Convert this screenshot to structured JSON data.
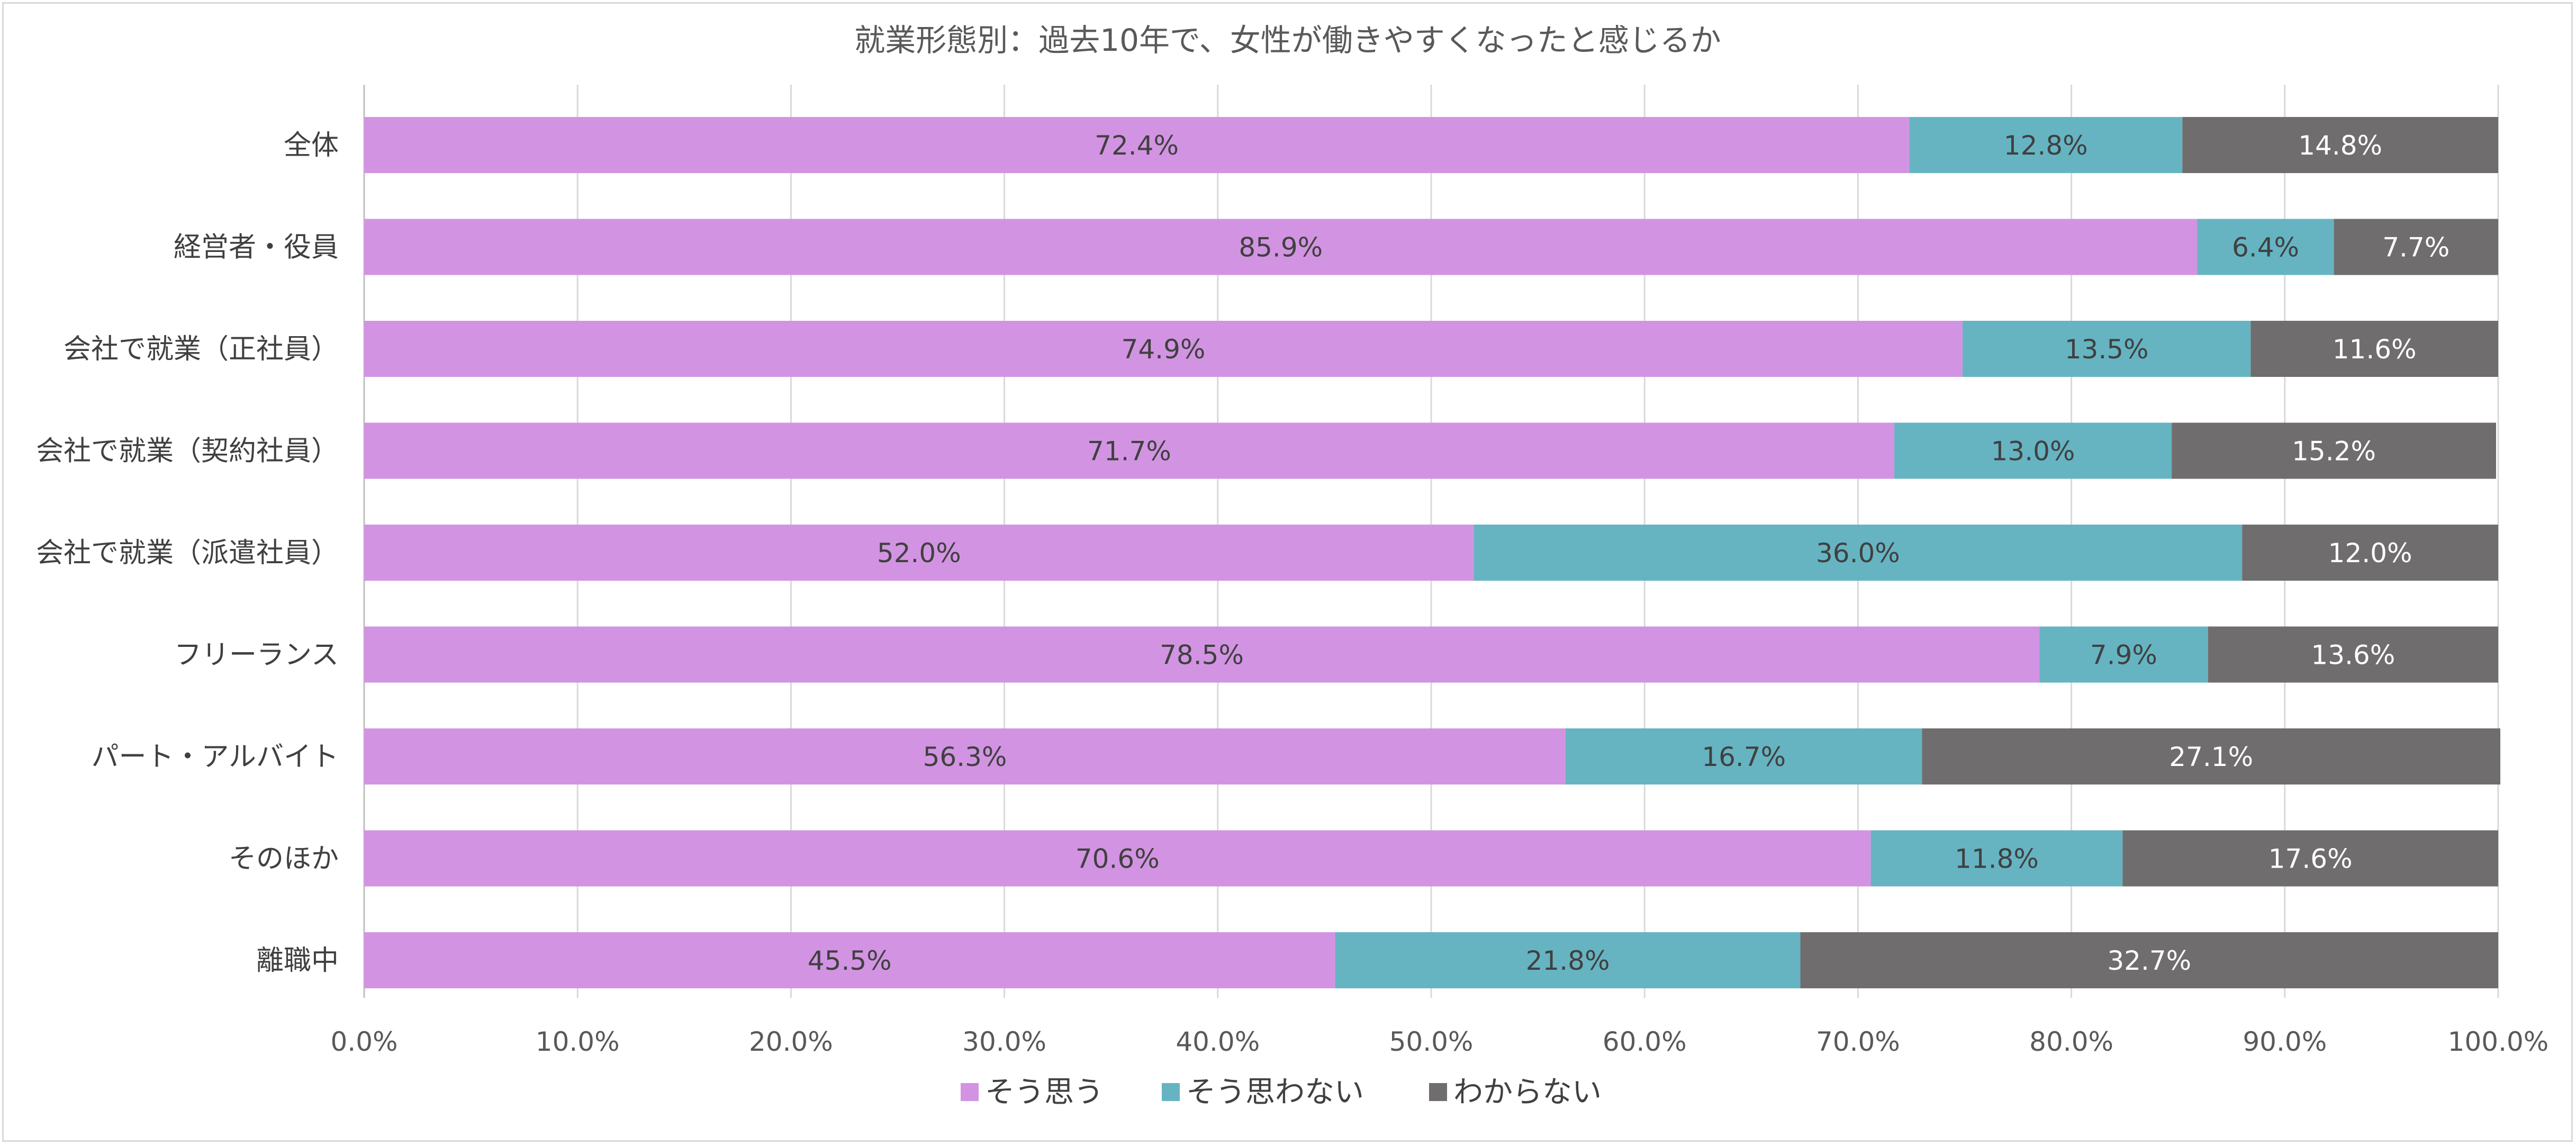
{
  "chart_data": {
    "type": "bar",
    "orientation": "horizontal",
    "stacked": true,
    "title": "就業形態別：過去10年で、女性が働きやすくなったと感じるか",
    "categories": [
      "全体",
      "経営者・役員",
      "会社で就業（正社員）",
      "会社で就業（契約社員）",
      "会社で就業（派遣社員）",
      "フリーランス",
      "パート・アルバイト",
      "そのほか",
      "離職中"
    ],
    "series": [
      {
        "name": "そう思う",
        "color": "#d294e2",
        "values": [
          72.4,
          85.9,
          74.9,
          71.7,
          52.0,
          78.5,
          56.3,
          70.6,
          45.5
        ]
      },
      {
        "name": "そう思わない",
        "color": "#66b4c2",
        "values": [
          12.8,
          6.4,
          13.5,
          13.0,
          36.0,
          7.9,
          16.7,
          11.8,
          21.8
        ]
      },
      {
        "name": "わからない",
        "color": "#706d6e",
        "values": [
          14.8,
          7.7,
          11.6,
          15.2,
          12.0,
          13.6,
          27.1,
          17.6,
          32.7
        ]
      }
    ],
    "xlim": [
      0,
      100
    ],
    "x_ticks": [
      "0.0%",
      "10.0%",
      "20.0%",
      "30.0%",
      "40.0%",
      "50.0%",
      "60.0%",
      "70.0%",
      "80.0%",
      "90.0%",
      "100.0%"
    ],
    "grid": true,
    "legend_position": "bottom"
  }
}
